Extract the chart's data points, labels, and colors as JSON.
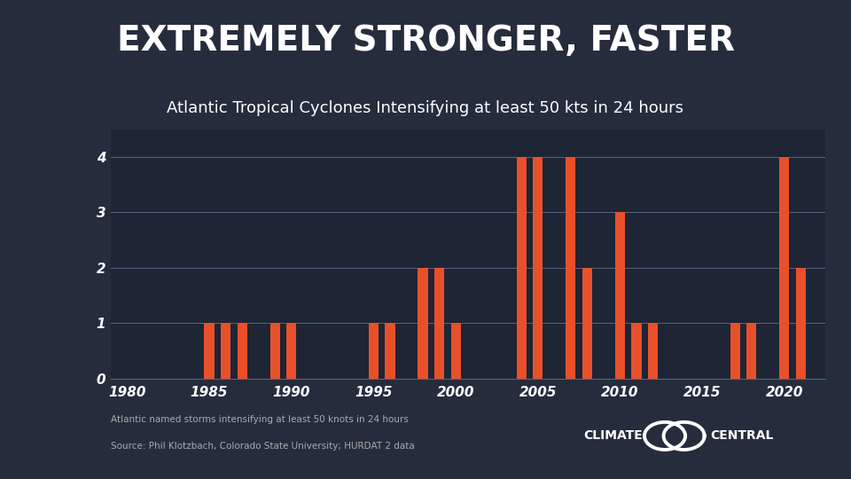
{
  "title": "EXTREMELY STRONGER, FASTER",
  "subtitle": "Atlantic Tropical Cyclones Intensifying at least 50 kts in 24 hours",
  "footnote1": "Atlantic named storms intensifying at least 50 knots in 24 hours",
  "footnote2": "Source: Phil Klotzbach, Colorado State University; HURDAT 2 data",
  "years": [
    1980,
    1981,
    1982,
    1983,
    1984,
    1985,
    1986,
    1987,
    1988,
    1989,
    1990,
    1991,
    1992,
    1993,
    1994,
    1995,
    1996,
    1997,
    1998,
    1999,
    2000,
    2001,
    2002,
    2003,
    2004,
    2005,
    2006,
    2007,
    2008,
    2009,
    2010,
    2011,
    2012,
    2013,
    2014,
    2015,
    2016,
    2017,
    2018,
    2019,
    2020,
    2021
  ],
  "values": [
    0,
    0,
    0,
    0,
    0,
    1,
    1,
    1,
    0,
    1,
    1,
    0,
    0,
    0,
    0,
    1,
    1,
    0,
    2,
    2,
    1,
    0,
    0,
    0,
    4,
    4,
    0,
    4,
    2,
    0,
    3,
    1,
    1,
    0,
    0,
    0,
    0,
    1,
    1,
    0,
    4,
    2
  ],
  "bar_color": "#E8502A",
  "background_color": "#252d3d",
  "chart_bg_color": "#1e2535",
  "text_color": "#ffffff",
  "grid_color": "#5a6280",
  "ylim": [
    0,
    4.5
  ],
  "yticks": [
    0,
    1,
    2,
    3,
    4
  ],
  "title_fontsize": 28,
  "subtitle_fontsize": 13,
  "tick_fontsize": 11,
  "footnote_fontsize": 7.5,
  "logo_fontsize": 10
}
